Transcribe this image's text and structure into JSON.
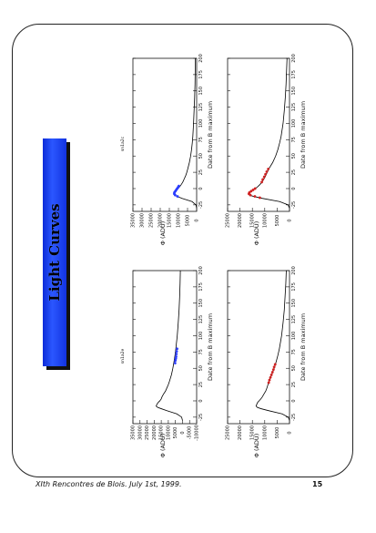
{
  "slide": {
    "title": "Light Curves",
    "footer": "XIth Rencontres de Blois. July 1st, 1999.",
    "page_number": "15"
  },
  "colors": {
    "title_box": "#1f4bff",
    "fit_curve": "#000000",
    "blue_points": "#2a3cff",
    "red_points": "#d02020",
    "frame": "#222222"
  },
  "chart_data": [
    {
      "type": "line",
      "title": "",
      "label": "sn1a2e",
      "xlabel": "Date from B maximum",
      "ylabel": "Φ (ADU)",
      "xlim": [
        -35,
        200
      ],
      "ylim": [
        -10000,
        35000
      ],
      "x_ticks": [
        -25,
        0,
        25,
        50,
        75,
        100,
        125,
        150,
        175,
        200
      ],
      "y_ticks": [
        -10000,
        -5000,
        0,
        5000,
        10000,
        15000,
        20000,
        25000,
        30000,
        35000
      ],
      "fit_curve": {
        "x": [
          -30,
          -25,
          -20,
          -15,
          -12,
          -10,
          -8,
          -5,
          -2,
          0,
          3,
          6,
          10,
          15,
          20,
          25,
          30,
          40,
          50,
          60,
          70,
          80,
          100,
          120,
          140,
          160,
          180,
          200
        ],
        "y": [
          0,
          600,
          4000,
          11000,
          15000,
          17500,
          18600,
          18000,
          17000,
          16000,
          15000,
          14500,
          13500,
          12000,
          11000,
          10000,
          9200,
          7800,
          6800,
          6000,
          5300,
          4700,
          3700,
          3000,
          2400,
          2000,
          1700,
          1500
        ]
      },
      "points": {
        "color": "blue",
        "x": [
          58,
          62,
          65,
          68,
          72,
          76,
          80
        ],
        "y": [
          5200,
          5000,
          4700,
          4500,
          4300,
          4100,
          3800
        ]
      }
    },
    {
      "type": "line",
      "title": "",
      "label": "sn1a2c",
      "xlabel": "Date from B maximum",
      "ylabel": "Φ (ADU)",
      "xlim": [
        -35,
        200
      ],
      "ylim": [
        0,
        35000
      ],
      "x_ticks": [
        -25,
        0,
        25,
        50,
        75,
        100,
        125,
        150,
        175,
        200
      ],
      "y_ticks": [
        0,
        5000,
        10000,
        15000,
        20000,
        25000,
        30000,
        35000
      ],
      "fit_curve": {
        "x": [
          -30,
          -25,
          -20,
          -15,
          -12,
          -10,
          -8,
          -5,
          -2,
          0,
          3,
          6,
          10,
          15,
          20,
          25,
          30,
          40,
          50,
          60,
          70,
          80,
          100,
          120,
          140,
          160,
          180,
          200
        ],
        "y": [
          0,
          400,
          2500,
          8000,
          10800,
          12200,
          12400,
          11800,
          11000,
          10200,
          9300,
          8500,
          7600,
          6800,
          6000,
          5400,
          4900,
          4000,
          3300,
          2800,
          2400,
          2100,
          1700,
          1400,
          1100,
          900,
          800,
          700
        ]
      },
      "points": {
        "color": "blue",
        "x": [
          -12,
          -10,
          -8,
          -6,
          -4,
          -2,
          0,
          2,
          4
        ],
        "y": [
          10500,
          11800,
          12300,
          12200,
          11700,
          11200,
          10700,
          10200,
          9800
        ]
      }
    },
    {
      "type": "line",
      "title": "",
      "label": "",
      "xlabel": "Date from B maximum",
      "ylabel": "Φ (ADU)",
      "xlim": [
        -35,
        200
      ],
      "ylim": [
        0,
        25000
      ],
      "x_ticks": [
        -25,
        0,
        25,
        50,
        75,
        100,
        125,
        150,
        175,
        200
      ],
      "y_ticks": [
        0,
        5000,
        10000,
        15000,
        20000,
        25000
      ],
      "fit_curve": {
        "x": [
          -30,
          -25,
          -20,
          -15,
          -12,
          -10,
          -8,
          -5,
          -2,
          0,
          3,
          6,
          10,
          15,
          20,
          25,
          30,
          40,
          50,
          60,
          70,
          80,
          100,
          120,
          140,
          160,
          180,
          200
        ],
        "y": [
          0,
          500,
          3000,
          8500,
          11500,
          13000,
          13500,
          13200,
          12800,
          12300,
          11600,
          11000,
          10400,
          9600,
          9100,
          8700,
          8300,
          7200,
          6200,
          5400,
          4700,
          4100,
          3200,
          2600,
          2100,
          1800,
          1500,
          1300
        ]
      },
      "points": {
        "color": "red",
        "x": [
          28,
          32,
          36,
          40,
          44,
          48,
          52,
          56
        ],
        "y": [
          8400,
          8100,
          7700,
          7300,
          6900,
          6500,
          6200,
          5800
        ]
      }
    },
    {
      "type": "line",
      "title": "",
      "label": "",
      "xlabel": "Date from B maximum",
      "ylabel": "Φ (ADU)",
      "xlim": [
        -35,
        200
      ],
      "ylim": [
        0,
        25000
      ],
      "x_ticks": [
        -25,
        0,
        25,
        50,
        75,
        100,
        125,
        150,
        175,
        200
      ],
      "y_ticks": [
        0,
        5000,
        10000,
        15000,
        20000,
        25000
      ],
      "fit_curve": {
        "x": [
          -30,
          -25,
          -20,
          -15,
          -12,
          -10,
          -8,
          -5,
          -2,
          0,
          3,
          6,
          10,
          15,
          20,
          25,
          30,
          40,
          50,
          60,
          70,
          80,
          100,
          120,
          140,
          160,
          180,
          200
        ],
        "y": [
          0,
          600,
          4000,
          11000,
          14500,
          16200,
          16500,
          15800,
          14700,
          13800,
          12800,
          12000,
          11100,
          10300,
          9600,
          9000,
          8400,
          6800,
          5600,
          4700,
          4000,
          3400,
          2600,
          2100,
          1700,
          1400,
          1200,
          1000
        ]
      },
      "points": {
        "color": "red",
        "x": [
          -14,
          -12,
          -10,
          -8,
          -6,
          -4,
          -2,
          0,
          10,
          14,
          18,
          22,
          26,
          30
        ],
        "y": [
          12000,
          14000,
          15800,
          16400,
          16200,
          15500,
          14700,
          13900,
          11200,
          10800,
          10200,
          9700,
          9200,
          8600
        ]
      }
    }
  ]
}
